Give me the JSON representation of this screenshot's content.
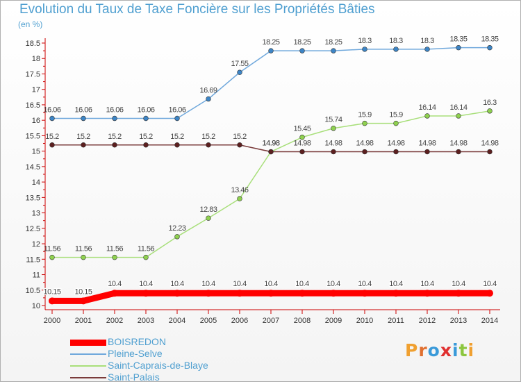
{
  "chart_data": {
    "type": "line",
    "title": "Evolution du Taux de Taxe Foncière sur les Propriétés Bâties",
    "subtitle": "(en %)",
    "categories": [
      "2000",
      "2001",
      "2002",
      "2003",
      "2004",
      "2005",
      "2006",
      "2007",
      "2008",
      "2009",
      "2010",
      "2011",
      "2012",
      "2013",
      "2014"
    ],
    "ylim": [
      10,
      18.5
    ],
    "yticks": [
      "10",
      "10.5",
      "11",
      "11.5",
      "12",
      "12.5",
      "13",
      "13.5",
      "14",
      "14.5",
      "15",
      "15.5",
      "16",
      "16.5",
      "17",
      "17.5",
      "18",
      "18.5"
    ],
    "grid": false,
    "legend_position": "bottom-left",
    "series": [
      {
        "name": "BOISREDON",
        "color": "#ff0000",
        "marker": "#ff0000",
        "label_color": "#ffffff",
        "values": [
          10.15,
          10.15,
          10.4,
          10.4,
          10.4,
          10.4,
          10.4,
          10.4,
          10.4,
          10.4,
          10.4,
          10.4,
          10.4,
          10.4,
          10.4
        ],
        "labels": [
          "10.15",
          "10.15",
          "10.4",
          "10.4",
          "10.4",
          "10.4",
          "10.4",
          "10.4",
          "10.4",
          "10.4",
          "10.4",
          "10.4",
          "10.4",
          "10.4",
          "10.4"
        ]
      },
      {
        "name": "Pleine-Selve",
        "color": "#6fa8dc",
        "marker": "#3d85c6",
        "label_color": "#555555",
        "values": [
          16.06,
          16.06,
          16.06,
          16.06,
          16.06,
          16.69,
          17.55,
          18.25,
          18.25,
          18.25,
          18.3,
          18.3,
          18.3,
          18.35,
          18.35
        ],
        "labels": [
          "16.06",
          "16.06",
          "16.06",
          "16.06",
          "16.06",
          "16.69",
          "17.55",
          "18.25",
          "18.25",
          "18.25",
          "18.3",
          "18.3",
          "18.3",
          "18.35",
          "18.35"
        ]
      },
      {
        "name": "Saint-Caprais-de-Blaye",
        "color": "#a8df7a",
        "marker": "#8fd14f",
        "label_color": "#555555",
        "values": [
          11.56,
          11.56,
          11.56,
          11.56,
          12.23,
          12.83,
          13.46,
          14.98,
          15.45,
          15.74,
          15.9,
          15.9,
          16.14,
          16.14,
          16.3
        ],
        "labels": [
          "11.56",
          "11.56",
          "11.56",
          "11.56",
          "12.23",
          "12.83",
          "13.46",
          "14.98",
          "15.45",
          "15.74",
          "15.9",
          "15.9",
          "16.14",
          "16.14",
          "16.3"
        ]
      },
      {
        "name": "Saint-Palais",
        "color": "#7a3b3b",
        "marker": "#5c1f1f",
        "label_color": "#555555",
        "values": [
          15.2,
          15.2,
          15.2,
          15.2,
          15.2,
          15.2,
          15.2,
          14.98,
          14.98,
          14.98,
          14.98,
          14.98,
          14.98,
          14.98,
          14.98
        ],
        "labels": [
          "15.2",
          "15.2",
          "15.2",
          "15.2",
          "15.2",
          "15.2",
          "15.2",
          "14.98",
          "14.98",
          "14.98",
          "14.98",
          "14.98",
          "14.98",
          "14.98",
          "14.98"
        ]
      }
    ]
  },
  "logo": {
    "text": "Proxiti"
  }
}
